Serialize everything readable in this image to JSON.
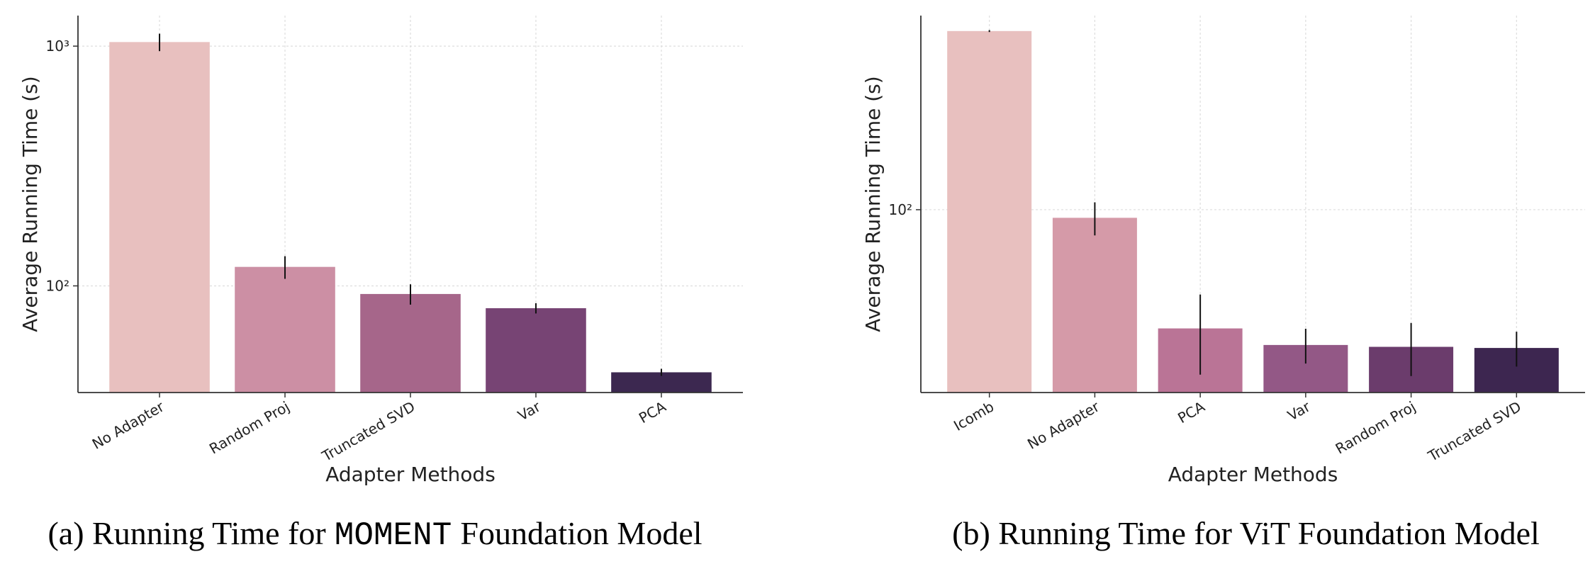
{
  "chart_data": [
    {
      "type": "bar",
      "x_label": "Adapter Methods",
      "y_label": "Average Running Time (s)",
      "caption": {
        "before": "(a) Running Time for",
        "code": "MOMENT",
        "after": "Foundation Model"
      },
      "categories": [
        "No Adapter",
        "Random Proj",
        "Truncated SVD",
        "Var",
        "PCA"
      ],
      "values": [
        1040,
        120,
        92.5,
        80.7,
        43.6
      ],
      "errors": [
        87,
        13,
        9,
        4,
        1.5
      ],
      "colors": [
        "#e8c0bf",
        "#cc8fa4",
        "#a6668a",
        "#774474",
        "#3c2850"
      ],
      "log_y": true,
      "grid": true,
      "ylim": [
        35.9,
        1341
      ],
      "yticks": [
        {
          "value": 100,
          "label": "10²"
        },
        {
          "value": 1000,
          "label": "10³"
        }
      ]
    },
    {
      "type": "bar",
      "x_label": "Adapter Methods",
      "y_label": "Average Running Time (s)",
      "caption": {
        "before": "(b) Running Time for ViT Foundation Model"
      },
      "categories": [
        "Icomb",
        "No Adapter",
        "PCA",
        "Var",
        "Random Proj",
        "Truncated SVD"
      ],
      "values": [
        400,
        93.9,
        39.8,
        35,
        34.5,
        34.2
      ],
      "errors": [
        3,
        12,
        12,
        4.7,
        7,
        4.6
      ],
      "colors": [
        "#e8c0bf",
        "#d59aa8",
        "#ba7496",
        "#935886",
        "#6b3c6c",
        "#3d2650"
      ],
      "log_y": true,
      "grid": true,
      "ylim": [
        24.2,
        451
      ],
      "yticks": [
        {
          "value": 100,
          "label": "10²"
        }
      ]
    }
  ]
}
